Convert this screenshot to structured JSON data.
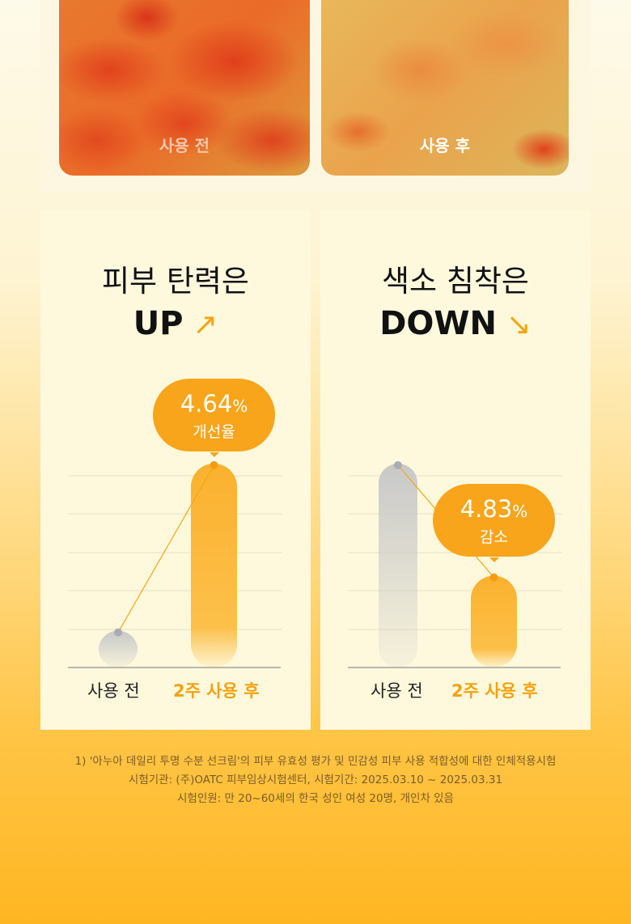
{
  "photos": {
    "before_label": "사용 전",
    "after_label": "사용 후"
  },
  "colors": {
    "accent": "#f9a51b",
    "gray_bar": "#cfcfcf",
    "card_bg": "#fef9dd"
  },
  "chart_data": [
    {
      "type": "bar",
      "title_line1": "피부 탄력은",
      "title_line2": "UP",
      "title_icon": "arrow-up-right-icon",
      "categories": [
        "사용 전",
        "2주 사용 후"
      ],
      "relative_levels": [
        18,
        100
      ],
      "grid": true,
      "annotation": {
        "value": "4.64",
        "unit": "%",
        "label": "개선율"
      }
    },
    {
      "type": "bar",
      "title_line1": "색소 침착은",
      "title_line2": "DOWN",
      "title_icon": "arrow-down-right-icon",
      "categories": [
        "사용 전",
        "2주 사용 후"
      ],
      "relative_levels": [
        100,
        45
      ],
      "grid": true,
      "annotation": {
        "value": "4.83",
        "unit": "%",
        "label": "감소"
      }
    }
  ],
  "footnote": [
    "1) '아누아 데일리 투명 수분 선크림'의 피부 유효성 평가 및 민감성 피부 사용 적합성에 대한 인체적용시험",
    "시험기관: (주)OATC 피부임상시험센터, 시험기간: 2025.03.10 ~ 2025.03.31",
    "시험인원: 만 20~60세의 한국 성인 여성 20명, 개인차 있음"
  ]
}
